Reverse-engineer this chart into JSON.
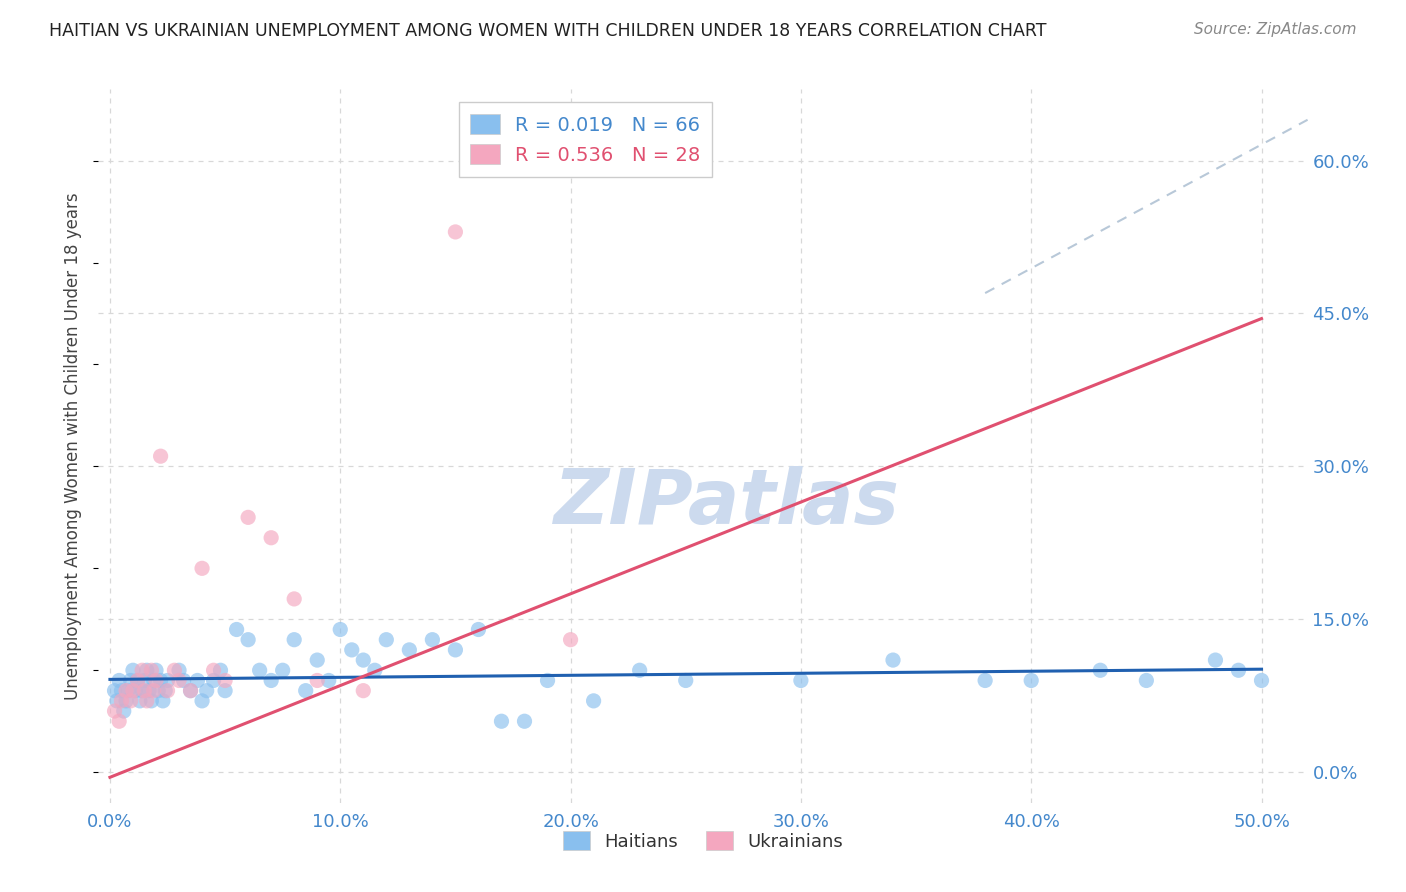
{
  "title": "HAITIAN VS UKRAINIAN UNEMPLOYMENT AMONG WOMEN WITH CHILDREN UNDER 18 YEARS CORRELATION CHART",
  "source": "Source: ZipAtlas.com",
  "ylabel": "Unemployment Among Women with Children Under 18 years",
  "xlabel_ticks": [
    "0.0%",
    "10.0%",
    "20.0%",
    "30.0%",
    "40.0%",
    "50.0%"
  ],
  "xlabel_vals": [
    0.0,
    0.1,
    0.2,
    0.3,
    0.4,
    0.5
  ],
  "ylabel_ticks": [
    "0.0%",
    "15.0%",
    "30.0%",
    "45.0%",
    "60.0%"
  ],
  "ylabel_vals": [
    0.0,
    0.15,
    0.3,
    0.45,
    0.6
  ],
  "xlim": [
    -0.005,
    0.52
  ],
  "ylim": [
    -0.03,
    0.67
  ],
  "haitian_x": [
    0.002,
    0.003,
    0.004,
    0.005,
    0.006,
    0.007,
    0.008,
    0.009,
    0.01,
    0.011,
    0.012,
    0.013,
    0.014,
    0.015,
    0.016,
    0.017,
    0.018,
    0.019,
    0.02,
    0.021,
    0.022,
    0.023,
    0.024,
    0.025,
    0.03,
    0.032,
    0.035,
    0.038,
    0.04,
    0.042,
    0.045,
    0.048,
    0.05,
    0.055,
    0.06,
    0.065,
    0.07,
    0.075,
    0.08,
    0.085,
    0.09,
    0.095,
    0.1,
    0.105,
    0.11,
    0.115,
    0.12,
    0.13,
    0.14,
    0.15,
    0.16,
    0.17,
    0.18,
    0.19,
    0.21,
    0.23,
    0.25,
    0.3,
    0.34,
    0.38,
    0.4,
    0.43,
    0.45,
    0.48,
    0.49,
    0.5
  ],
  "haitian_y": [
    0.08,
    0.07,
    0.09,
    0.08,
    0.06,
    0.07,
    0.08,
    0.09,
    0.1,
    0.08,
    0.09,
    0.07,
    0.08,
    0.09,
    0.1,
    0.08,
    0.07,
    0.09,
    0.1,
    0.08,
    0.09,
    0.07,
    0.08,
    0.09,
    0.1,
    0.09,
    0.08,
    0.09,
    0.07,
    0.08,
    0.09,
    0.1,
    0.08,
    0.14,
    0.13,
    0.1,
    0.09,
    0.1,
    0.13,
    0.08,
    0.11,
    0.09,
    0.14,
    0.12,
    0.11,
    0.1,
    0.13,
    0.12,
    0.13,
    0.12,
    0.14,
    0.05,
    0.05,
    0.09,
    0.07,
    0.1,
    0.09,
    0.09,
    0.11,
    0.09,
    0.09,
    0.1,
    0.09,
    0.11,
    0.1,
    0.09
  ],
  "ukrainian_x": [
    0.002,
    0.004,
    0.005,
    0.007,
    0.009,
    0.01,
    0.012,
    0.014,
    0.015,
    0.016,
    0.018,
    0.019,
    0.02,
    0.022,
    0.025,
    0.028,
    0.03,
    0.035,
    0.04,
    0.045,
    0.05,
    0.06,
    0.07,
    0.08,
    0.09,
    0.11,
    0.15,
    0.2
  ],
  "ukrainian_y": [
    0.06,
    0.05,
    0.07,
    0.08,
    0.07,
    0.08,
    0.09,
    0.1,
    0.08,
    0.07,
    0.1,
    0.08,
    0.09,
    0.31,
    0.08,
    0.1,
    0.09,
    0.08,
    0.2,
    0.1,
    0.09,
    0.25,
    0.23,
    0.17,
    0.09,
    0.08,
    0.53,
    0.13
  ],
  "haitian_R": 0.019,
  "haitian_N": 66,
  "ukrainian_R": 0.536,
  "ukrainian_N": 28,
  "haitian_color": "#89bfee",
  "ukrainian_color": "#f4a7bf",
  "haitian_line_color": "#2060b0",
  "ukrainian_line_color": "#e05070",
  "diagonal_color": "#b8c8d8",
  "background_color": "#ffffff",
  "grid_color": "#d8d8d8",
  "title_color": "#222222",
  "axis_label_color": "#444444",
  "tick_color": "#4488cc",
  "source_color": "#888888",
  "watermark": "ZIPatlas",
  "watermark_color": "#ccdaee",
  "legend_text_color_1": "#4488cc",
  "legend_text_color_2": "#e05070"
}
